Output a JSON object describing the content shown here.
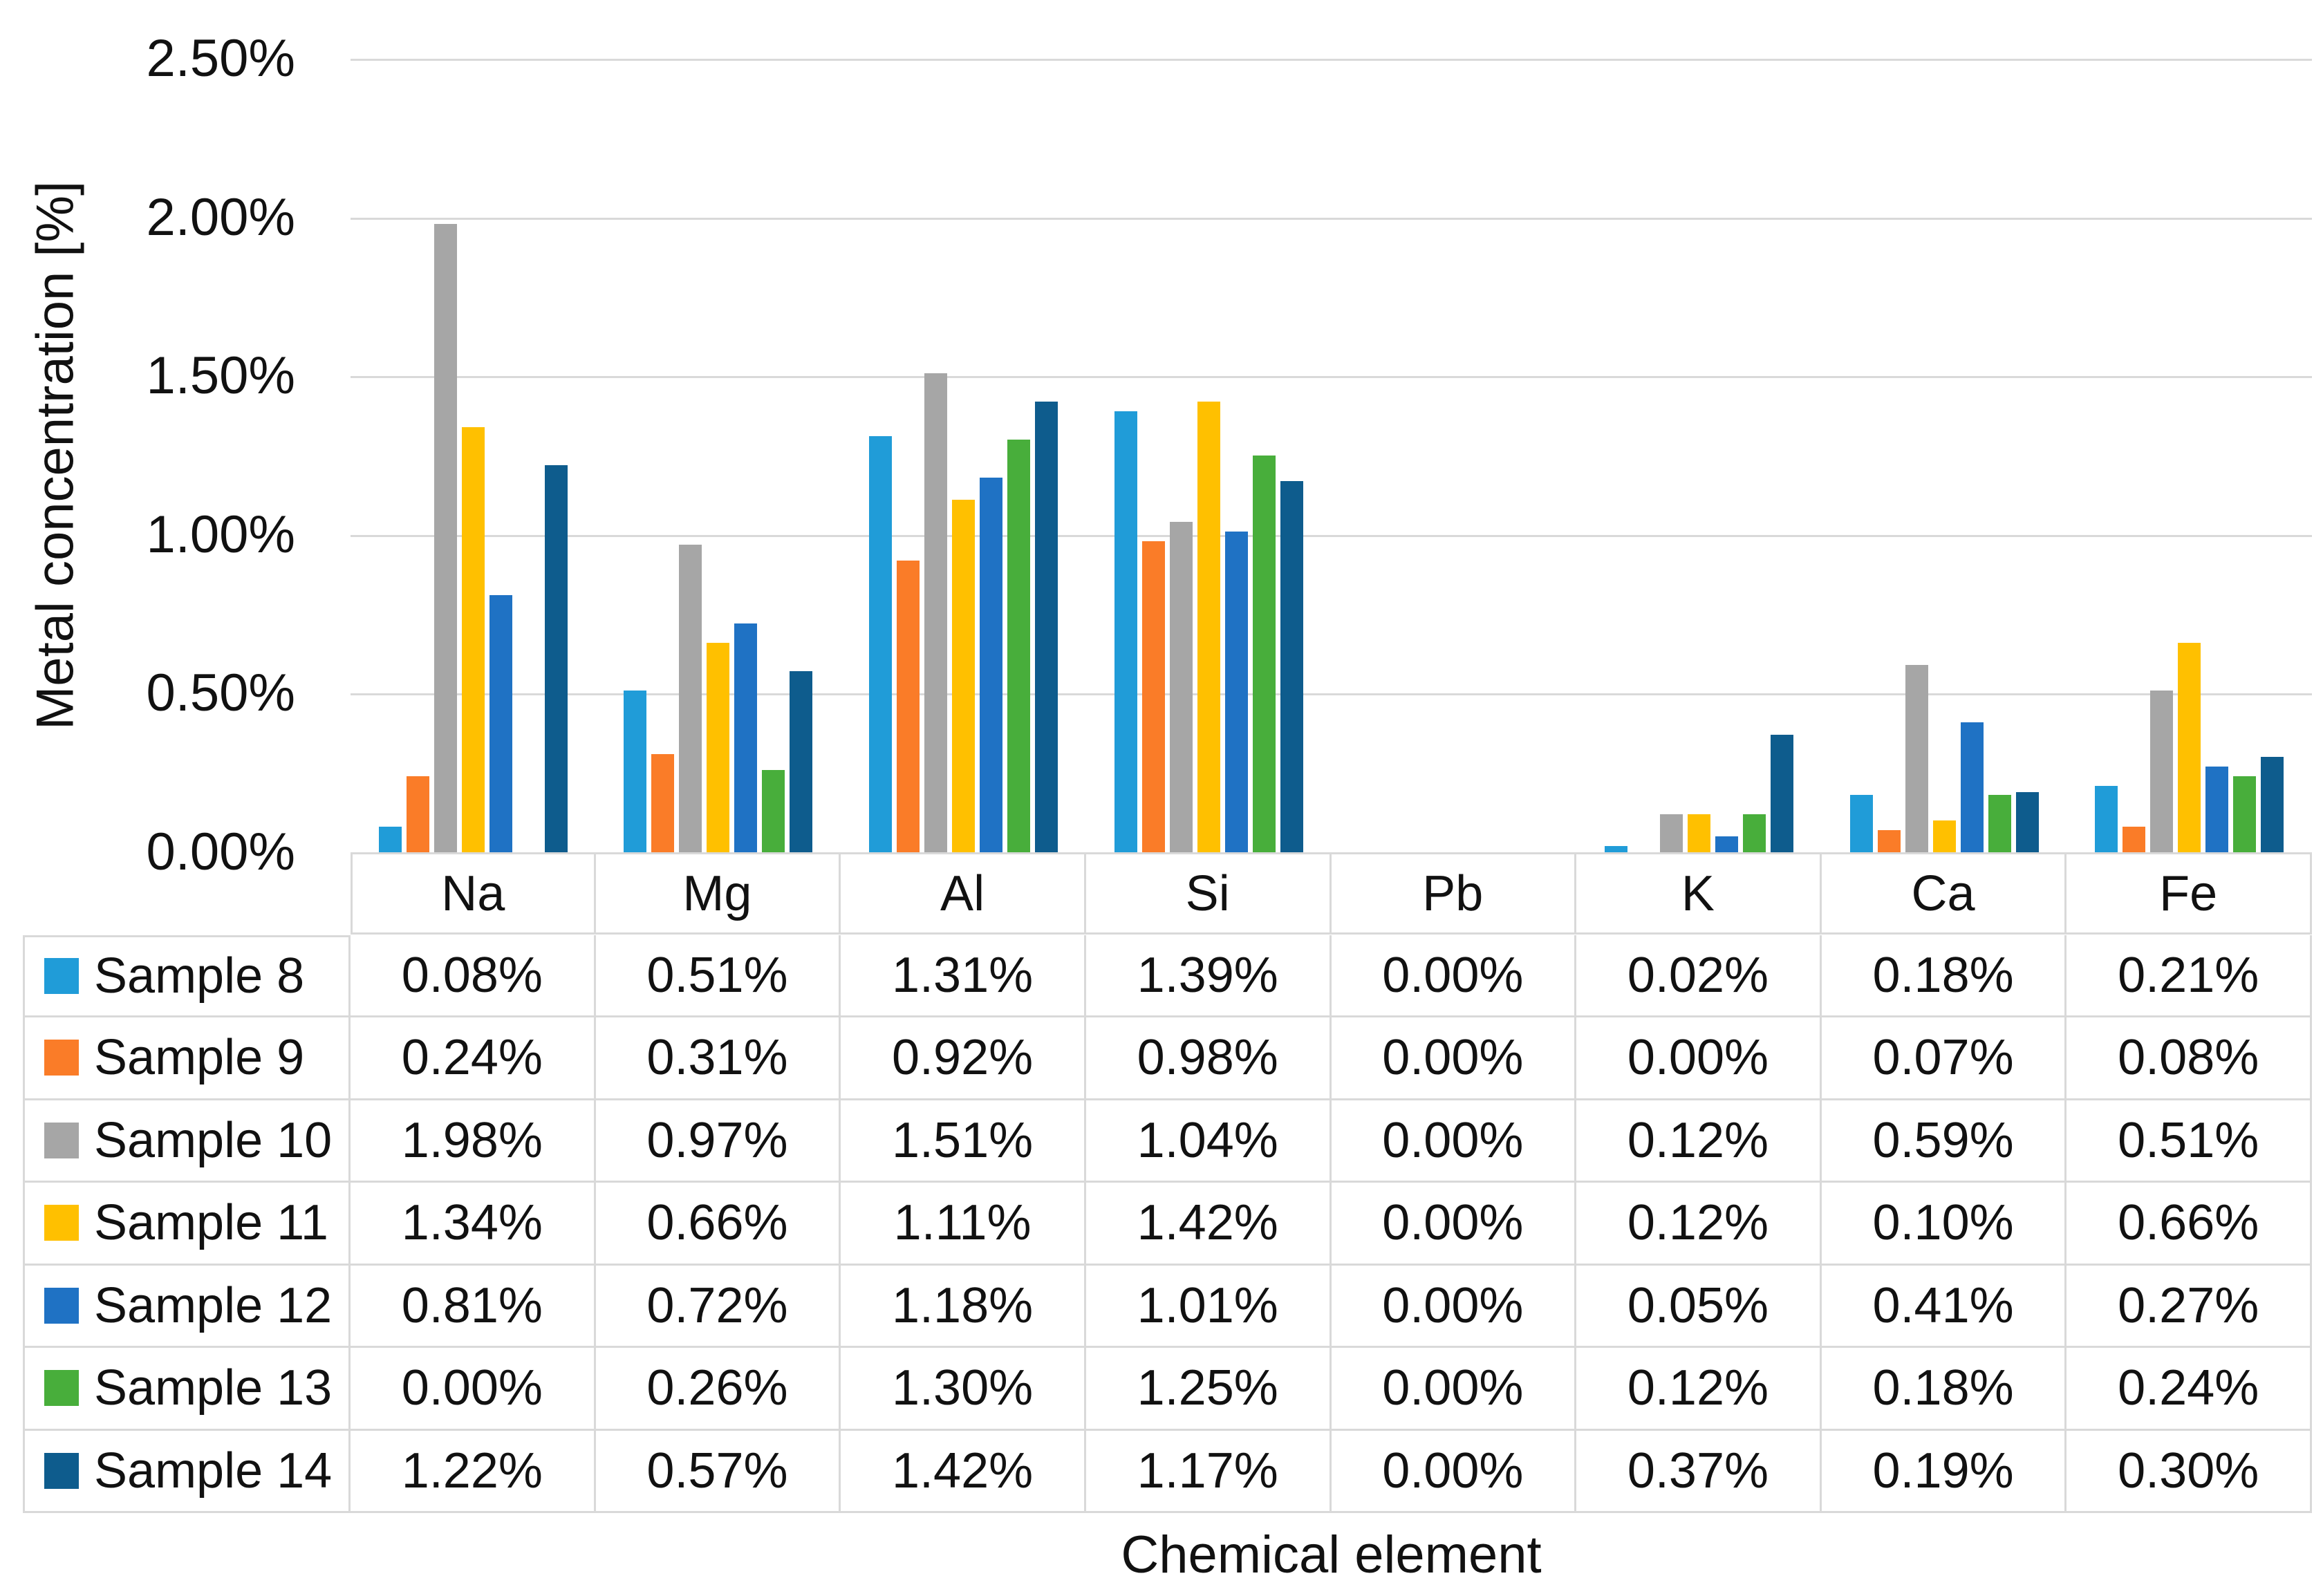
{
  "chart_data": {
    "type": "bar",
    "title": "",
    "y_axis_label": "Metal concentration [%]",
    "x_axis_label": "Chemical element",
    "categories": [
      "Na",
      "Mg",
      "Al",
      "Si",
      "Pb",
      "K",
      "Ca",
      "Fe"
    ],
    "y_ticks": [
      "2.50%",
      "2.00%",
      "1.50%",
      "1.00%",
      "0.50%",
      "0.00%"
    ],
    "y_axis_range": [
      0,
      2.5
    ],
    "grid": "horizontal",
    "legend_position": "table-rows-left",
    "value_format": "0.00%",
    "series": [
      {
        "name": "Sample 8",
        "color": "#209CD8",
        "values": [
          0.08,
          0.51,
          1.31,
          1.39,
          0.0,
          0.02,
          0.18,
          0.21
        ]
      },
      {
        "name": "Sample 9",
        "color": "#FA7C28",
        "values": [
          0.24,
          0.31,
          0.92,
          0.98,
          0.0,
          0.0,
          0.07,
          0.08
        ]
      },
      {
        "name": "Sample 10",
        "color": "#A6A6A6",
        "values": [
          1.98,
          0.97,
          1.51,
          1.04,
          0.0,
          0.12,
          0.59,
          0.51
        ]
      },
      {
        "name": "Sample 11",
        "color": "#FFC000",
        "values": [
          1.34,
          0.66,
          1.11,
          1.42,
          0.0,
          0.12,
          0.1,
          0.66
        ]
      },
      {
        "name": "Sample 12",
        "color": "#1F72C4",
        "values": [
          0.81,
          0.72,
          1.18,
          1.01,
          0.0,
          0.05,
          0.41,
          0.27
        ]
      },
      {
        "name": "Sample 13",
        "color": "#48AE3B",
        "values": [
          0.0,
          0.26,
          1.3,
          1.25,
          0.0,
          0.12,
          0.18,
          0.24
        ]
      },
      {
        "name": "Sample 14",
        "color": "#0E5C8D",
        "values": [
          1.22,
          0.57,
          1.42,
          1.17,
          0.0,
          0.37,
          0.19,
          0.3
        ]
      }
    ]
  },
  "colors": {
    "background": "#FFFFFF",
    "gridline": "#D9D9D9",
    "table_border": "#D9D9D9",
    "text": "#111111"
  }
}
